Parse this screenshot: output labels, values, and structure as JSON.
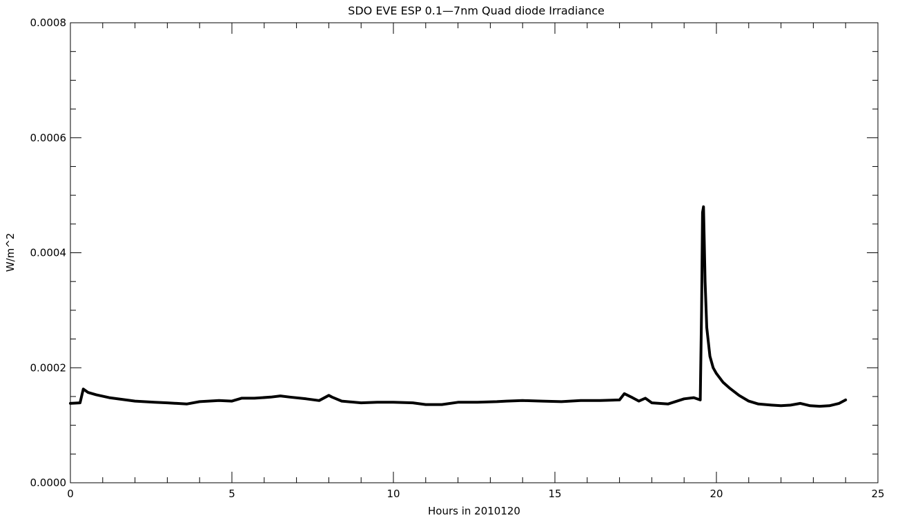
{
  "chart_data": {
    "type": "line",
    "title": "SDO EVE ESP 0.1—7nm Quad diode Irradiance",
    "xlabel": "Hours in 2010120",
    "ylabel": "W/m^2",
    "xlim": [
      0,
      25
    ],
    "ylim": [
      0.0,
      0.0008
    ],
    "x_ticks": [
      0,
      5,
      10,
      15,
      20,
      25
    ],
    "x_tick_labels": [
      "0",
      "5",
      "10",
      "15",
      "20",
      "25"
    ],
    "y_ticks": [
      0.0,
      0.0002,
      0.0004,
      0.0006,
      0.0008
    ],
    "y_tick_labels": [
      "0.0000",
      "0.0002",
      "0.0004",
      "0.0006",
      "0.0008"
    ],
    "x_minor_tick_step": 1,
    "y_minor_tick_step": 5e-05,
    "grid": false,
    "line_color": "#000000",
    "series": [
      {
        "x": [
          0.0,
          0.3,
          0.4,
          0.55,
          0.8,
          1.2,
          1.6,
          2.0,
          2.6,
          3.0,
          3.6,
          4.0,
          4.6,
          5.0,
          5.3,
          5.7,
          6.2,
          6.5,
          6.8,
          7.3,
          7.7,
          8.0,
          8.1,
          8.4,
          9.0,
          9.5,
          10.0,
          10.6,
          11.0,
          11.5,
          12.0,
          12.6,
          13.2,
          13.5,
          14.0,
          14.6,
          15.2,
          15.8,
          16.4,
          17.0,
          17.15,
          17.4,
          17.6,
          17.8,
          18.0,
          18.5,
          19.0,
          19.3,
          19.5,
          19.54,
          19.57,
          19.6,
          19.62,
          19.65,
          19.7,
          19.8,
          19.9,
          20.0,
          20.2,
          20.4,
          20.7,
          21.0,
          21.3,
          21.7,
          22.0,
          22.3,
          22.6,
          22.9,
          23.2,
          23.5,
          23.8,
          24.0
        ],
        "y": [
          0.000138,
          0.000139,
          0.000163,
          0.000157,
          0.000153,
          0.000148,
          0.000145,
          0.000142,
          0.00014,
          0.000139,
          0.000137,
          0.000141,
          0.000143,
          0.000142,
          0.000147,
          0.000147,
          0.000149,
          0.000151,
          0.000149,
          0.000146,
          0.000143,
          0.000152,
          0.000149,
          0.000142,
          0.000139,
          0.00014,
          0.00014,
          0.000139,
          0.000136,
          0.000136,
          0.00014,
          0.00014,
          0.000141,
          0.000142,
          0.000143,
          0.000142,
          0.000141,
          0.000143,
          0.000143,
          0.000144,
          0.000155,
          0.000148,
          0.000142,
          0.000147,
          0.000139,
          0.000137,
          0.000146,
          0.000148,
          0.000144,
          0.0003,
          0.00047,
          0.00048,
          0.00043,
          0.00035,
          0.00027,
          0.00022,
          0.0002,
          0.00019,
          0.000175,
          0.000165,
          0.000152,
          0.000142,
          0.000137,
          0.000135,
          0.000134,
          0.000135,
          0.000138,
          0.000134,
          0.000133,
          0.000134,
          0.000138,
          0.000144
        ]
      }
    ]
  }
}
